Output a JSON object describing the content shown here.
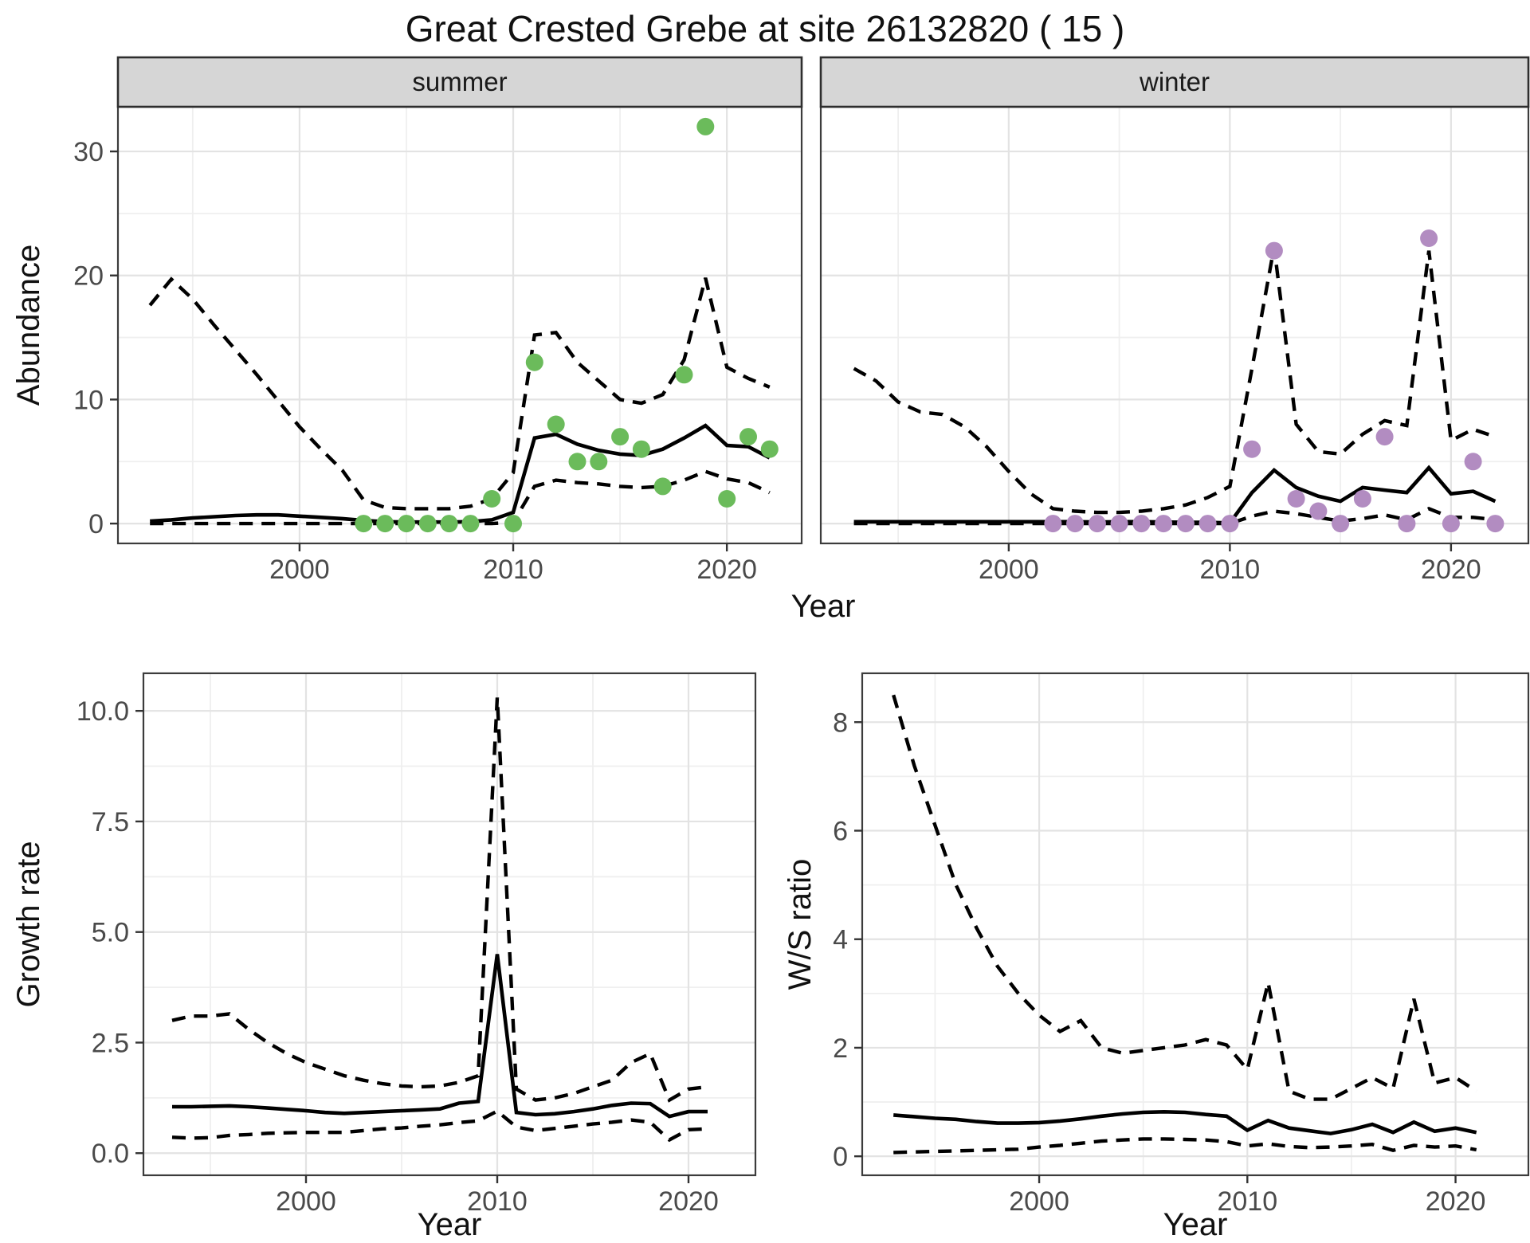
{
  "title": "Great Crested Grebe at site 26132820 ( 15 )",
  "axis": {
    "x_title": "Year"
  },
  "colors": {
    "summer_points": "#6BBB5B",
    "winter_points": "#B28CC1",
    "line": "#000000",
    "strip_bg": "#D6D6D6",
    "strip_border": "#2E2E2E",
    "panel_border": "#3C3C3C",
    "grid_major": "#E3E3E3",
    "grid_minor": "#EFEFEF",
    "tick_mark": "#333333",
    "tick_label": "#4A4A4A"
  },
  "chart_data": [
    {
      "id": "abundance-summer",
      "type": "line",
      "facet_label": "summer",
      "ylabel": "Abundance",
      "xlabel": "Year",
      "xlim": [
        1991.5,
        2023.5
      ],
      "ylim": [
        -1.6,
        33.6
      ],
      "xticks": {
        "values": [
          2000,
          2010,
          2020
        ],
        "labels": [
          "2000",
          "2010",
          "2020"
        ]
      },
      "yticks": {
        "values": [
          0,
          10,
          20,
          30
        ],
        "labels": [
          "0",
          "10",
          "20",
          "30"
        ]
      },
      "x_minor": [
        1995,
        2005,
        2015
      ],
      "y_minor": [
        5,
        15,
        25
      ],
      "lines": [
        {
          "name": "median",
          "dash": false,
          "x": [
            1993,
            1994,
            1995,
            1996,
            1997,
            1998,
            1999,
            2000,
            2001,
            2002,
            2003,
            2004,
            2005,
            2006,
            2007,
            2008,
            2009,
            2010,
            2011,
            2012,
            2013,
            2014,
            2015,
            2016,
            2017,
            2018,
            2019,
            2020,
            2021,
            2022
          ],
          "y": [
            0.2,
            0.3,
            0.45,
            0.55,
            0.65,
            0.7,
            0.7,
            0.6,
            0.5,
            0.4,
            0.25,
            0.15,
            0.12,
            0.12,
            0.12,
            0.15,
            0.3,
            0.9,
            6.9,
            7.2,
            6.4,
            5.9,
            5.6,
            5.5,
            6.0,
            6.9,
            7.9,
            6.3,
            6.2,
            5.3
          ]
        },
        {
          "name": "upper-ci",
          "dash": true,
          "x": [
            1993,
            1994,
            1995,
            1996,
            1997,
            1998,
            1999,
            2000,
            2001,
            2002,
            2003,
            2004,
            2005,
            2006,
            2007,
            2008,
            2009,
            2010,
            2011,
            2012,
            2013,
            2014,
            2015,
            2016,
            2017,
            2018,
            2019,
            2020,
            2021,
            2022
          ],
          "y": [
            17.6,
            19.7,
            18.1,
            16.0,
            14.0,
            12.0,
            9.9,
            7.8,
            6.0,
            4.3,
            1.9,
            1.3,
            1.2,
            1.2,
            1.2,
            1.4,
            2.0,
            4.1,
            15.2,
            15.4,
            13.0,
            11.5,
            10.0,
            9.7,
            10.4,
            13.2,
            19.8,
            12.6,
            11.7,
            11.0
          ]
        },
        {
          "name": "lower-ci",
          "dash": true,
          "x": [
            1993,
            1994,
            1995,
            1996,
            1997,
            1998,
            1999,
            2000,
            2001,
            2002,
            2003,
            2004,
            2005,
            2006,
            2007,
            2008,
            2009,
            2010,
            2011,
            2012,
            2013,
            2014,
            2015,
            2016,
            2017,
            2018,
            2019,
            2020,
            2021,
            2022
          ],
          "y": [
            0,
            0,
            0,
            0,
            0,
            0,
            0,
            0,
            0,
            0,
            0,
            0,
            0,
            0,
            0,
            0,
            0,
            0.1,
            3.0,
            3.5,
            3.3,
            3.2,
            3.0,
            2.9,
            3.0,
            3.5,
            4.2,
            3.6,
            3.3,
            2.5
          ]
        }
      ],
      "points": {
        "name": "observed-point-summer",
        "color": "#6BBB5B",
        "x": [
          2003,
          2004,
          2005,
          2006,
          2007,
          2008,
          2009,
          2010,
          2011,
          2012,
          2013,
          2014,
          2015,
          2016,
          2017,
          2018,
          2019,
          2020,
          2021,
          2022
        ],
        "y": [
          0,
          0,
          0,
          0,
          0,
          0,
          2,
          0,
          13,
          8,
          5,
          5,
          7,
          6,
          3,
          12,
          32,
          2,
          7,
          6
        ]
      }
    },
    {
      "id": "abundance-winter",
      "type": "line",
      "facet_label": "winter",
      "ylabel": "Abundance",
      "xlabel": "Year",
      "xlim": [
        1991.5,
        2023.5
      ],
      "ylim": [
        -1.6,
        33.6
      ],
      "xticks": {
        "values": [
          2000,
          2010,
          2020
        ],
        "labels": [
          "2000",
          "2010",
          "2020"
        ]
      },
      "yticks": {
        "values": [
          0,
          10,
          20,
          30
        ],
        "labels": [
          "0",
          "10",
          "20",
          "30"
        ]
      },
      "x_minor": [
        1995,
        2005,
        2015
      ],
      "y_minor": [
        5,
        15,
        25
      ],
      "lines": [
        {
          "name": "median",
          "dash": false,
          "x": [
            1993,
            1994,
            1995,
            1996,
            1997,
            1998,
            1999,
            2000,
            2001,
            2002,
            2003,
            2004,
            2005,
            2006,
            2007,
            2008,
            2009,
            2010,
            2011,
            2012,
            2013,
            2014,
            2015,
            2016,
            2017,
            2018,
            2019,
            2020,
            2021,
            2022
          ],
          "y": [
            0.15,
            0.15,
            0.15,
            0.15,
            0.15,
            0.15,
            0.15,
            0.15,
            0.15,
            0.15,
            0.15,
            0.12,
            0.15,
            0.15,
            0.12,
            0.1,
            0.1,
            0.05,
            2.5,
            4.3,
            2.9,
            2.2,
            1.8,
            2.9,
            2.7,
            2.5,
            4.5,
            2.4,
            2.6,
            1.8
          ]
        },
        {
          "name": "upper-ci",
          "dash": true,
          "x": [
            1993,
            1994,
            1995,
            1996,
            1997,
            1998,
            1999,
            2000,
            2001,
            2002,
            2003,
            2004,
            2005,
            2006,
            2007,
            2008,
            2009,
            2010,
            2011,
            2012,
            2013,
            2014,
            2015,
            2016,
            2017,
            2018,
            2019,
            2020,
            2021,
            2022
          ],
          "y": [
            12.5,
            11.5,
            9.8,
            9.0,
            8.8,
            7.8,
            6.2,
            4.2,
            2.4,
            1.2,
            1.0,
            0.9,
            0.9,
            1.0,
            1.2,
            1.5,
            2.1,
            3.0,
            12.5,
            22.3,
            8.0,
            5.8,
            5.6,
            7.2,
            8.3,
            7.9,
            22.0,
            6.7,
            7.6,
            7.0
          ]
        },
        {
          "name": "lower-ci",
          "dash": true,
          "x": [
            1993,
            1994,
            1995,
            1996,
            1997,
            1998,
            1999,
            2000,
            2001,
            2002,
            2003,
            2004,
            2005,
            2006,
            2007,
            2008,
            2009,
            2010,
            2011,
            2012,
            2013,
            2014,
            2015,
            2016,
            2017,
            2018,
            2019,
            2020,
            2021,
            2022
          ],
          "y": [
            0,
            0,
            0,
            0,
            0,
            0,
            0,
            0,
            0,
            0,
            0,
            0,
            0,
            0,
            0,
            0,
            0,
            0,
            0.6,
            1.0,
            0.8,
            0.5,
            0.2,
            0.4,
            0.7,
            0.3,
            1.2,
            0.5,
            0.5,
            0.3
          ]
        }
      ],
      "points": {
        "name": "observed-point-winter",
        "color": "#B28CC1",
        "x": [
          2002,
          2003,
          2004,
          2005,
          2006,
          2007,
          2008,
          2009,
          2010,
          2011,
          2012,
          2013,
          2014,
          2015,
          2016,
          2017,
          2018,
          2019,
          2020,
          2021,
          2022
        ],
        "y": [
          0,
          0,
          0,
          0,
          0,
          0,
          0,
          0,
          0,
          6,
          22,
          2,
          1,
          0,
          2,
          7,
          0,
          23,
          0,
          5,
          0
        ]
      }
    },
    {
      "id": "growth-rate",
      "type": "line",
      "facet_label": "",
      "ylabel": "Growth rate",
      "xlabel": "Year",
      "xlim": [
        1991.5,
        2023.5
      ],
      "ylim": [
        -0.5,
        10.85
      ],
      "xticks": {
        "values": [
          2000,
          2010,
          2020
        ],
        "labels": [
          "2000",
          "2010",
          "2020"
        ]
      },
      "yticks": {
        "values": [
          0,
          2.5,
          5,
          7.5,
          10
        ],
        "labels": [
          "0.0",
          "2.5",
          "5.0",
          "7.5",
          "10.0"
        ]
      },
      "x_minor": [
        1995,
        2005,
        2015
      ],
      "y_minor": [
        1.25,
        3.75,
        6.25,
        8.75
      ],
      "lines": [
        {
          "name": "median",
          "dash": false,
          "x": [
            1993,
            1994,
            1995,
            1996,
            1997,
            1998,
            1999,
            2000,
            2001,
            2002,
            2003,
            2004,
            2005,
            2006,
            2007,
            2008,
            2009,
            2010,
            2011,
            2012,
            2013,
            2014,
            2015,
            2016,
            2017,
            2018,
            2019,
            2020,
            2021
          ],
          "y": [
            1.05,
            1.05,
            1.06,
            1.07,
            1.05,
            1.02,
            0.99,
            0.96,
            0.92,
            0.9,
            0.92,
            0.94,
            0.96,
            0.98,
            1.0,
            1.13,
            1.17,
            4.5,
            0.92,
            0.87,
            0.89,
            0.94,
            1.0,
            1.08,
            1.13,
            1.12,
            0.83,
            0.94,
            0.94
          ]
        },
        {
          "name": "upper-ci",
          "dash": true,
          "x": [
            1993,
            1994,
            1995,
            1996,
            1997,
            1998,
            1999,
            2000,
            2001,
            2002,
            2003,
            2004,
            2005,
            2006,
            2007,
            2008,
            2009,
            2010,
            2011,
            2012,
            2013,
            2014,
            2015,
            2016,
            2017,
            2018,
            2019,
            2020,
            2021
          ],
          "y": [
            3.0,
            3.1,
            3.1,
            3.15,
            2.8,
            2.5,
            2.25,
            2.05,
            1.9,
            1.75,
            1.65,
            1.57,
            1.52,
            1.5,
            1.52,
            1.6,
            1.75,
            10.3,
            1.45,
            1.2,
            1.25,
            1.35,
            1.5,
            1.65,
            2.05,
            2.25,
            1.2,
            1.45,
            1.5
          ]
        },
        {
          "name": "lower-ci",
          "dash": true,
          "x": [
            1993,
            1994,
            1995,
            1996,
            1997,
            1998,
            1999,
            2000,
            2001,
            2002,
            2003,
            2004,
            2005,
            2006,
            2007,
            2008,
            2009,
            2010,
            2011,
            2012,
            2013,
            2014,
            2015,
            2016,
            2017,
            2018,
            2019,
            2020,
            2021
          ],
          "y": [
            0.36,
            0.34,
            0.35,
            0.4,
            0.42,
            0.45,
            0.46,
            0.47,
            0.47,
            0.47,
            0.51,
            0.55,
            0.57,
            0.61,
            0.64,
            0.69,
            0.73,
            0.95,
            0.59,
            0.51,
            0.56,
            0.61,
            0.66,
            0.7,
            0.75,
            0.7,
            0.3,
            0.53,
            0.55
          ]
        }
      ],
      "points": null
    },
    {
      "id": "ws-ratio",
      "type": "line",
      "facet_label": "",
      "ylabel": "W/S ratio",
      "xlabel": "Year",
      "xlim": [
        1991.5,
        2023.5
      ],
      "ylim": [
        -0.35,
        8.9
      ],
      "xticks": {
        "values": [
          2000,
          2010,
          2020
        ],
        "labels": [
          "2000",
          "2010",
          "2020"
        ]
      },
      "yticks": {
        "values": [
          0,
          2,
          4,
          6,
          8
        ],
        "labels": [
          "0",
          "2",
          "4",
          "6",
          "8"
        ]
      },
      "x_minor": [
        1995,
        2005,
        2015
      ],
      "y_minor": [
        1,
        3,
        5,
        7
      ],
      "lines": [
        {
          "name": "median",
          "dash": false,
          "x": [
            1993,
            1994,
            1995,
            1996,
            1997,
            1998,
            1999,
            2000,
            2001,
            2002,
            2003,
            2004,
            2005,
            2006,
            2007,
            2008,
            2009,
            2010,
            2011,
            2012,
            2013,
            2014,
            2015,
            2016,
            2017,
            2018,
            2019,
            2020,
            2021
          ],
          "y": [
            0.76,
            0.73,
            0.7,
            0.68,
            0.64,
            0.61,
            0.61,
            0.62,
            0.65,
            0.69,
            0.74,
            0.78,
            0.81,
            0.82,
            0.81,
            0.77,
            0.74,
            0.48,
            0.66,
            0.52,
            0.47,
            0.42,
            0.49,
            0.59,
            0.44,
            0.63,
            0.46,
            0.52,
            0.44
          ]
        },
        {
          "name": "upper-ci",
          "dash": true,
          "x": [
            1993,
            1994,
            1995,
            1996,
            1997,
            1998,
            1999,
            2000,
            2001,
            2002,
            2003,
            2004,
            2005,
            2006,
            2007,
            2008,
            2009,
            2010,
            2011,
            2012,
            2013,
            2014,
            2015,
            2016,
            2017,
            2018,
            2019,
            2020,
            2021
          ],
          "y": [
            8.5,
            7.2,
            6.1,
            5.0,
            4.2,
            3.5,
            3.0,
            2.6,
            2.3,
            2.5,
            2.0,
            1.9,
            1.95,
            2.0,
            2.05,
            2.15,
            2.05,
            1.6,
            3.2,
            1.2,
            1.05,
            1.05,
            1.25,
            1.45,
            1.25,
            2.9,
            1.35,
            1.45,
            1.2
          ]
        },
        {
          "name": "lower-ci",
          "dash": true,
          "x": [
            1993,
            1994,
            1995,
            1996,
            1997,
            1998,
            1999,
            2000,
            2001,
            2002,
            2003,
            2004,
            2005,
            2006,
            2007,
            2008,
            2009,
            2010,
            2011,
            2012,
            2013,
            2014,
            2015,
            2016,
            2017,
            2018,
            2019,
            2020,
            2021
          ],
          "y": [
            0.07,
            0.08,
            0.09,
            0.1,
            0.11,
            0.12,
            0.13,
            0.17,
            0.2,
            0.24,
            0.28,
            0.3,
            0.32,
            0.32,
            0.31,
            0.3,
            0.27,
            0.19,
            0.23,
            0.18,
            0.16,
            0.17,
            0.19,
            0.22,
            0.11,
            0.2,
            0.17,
            0.19,
            0.12
          ]
        }
      ],
      "points": null
    }
  ]
}
